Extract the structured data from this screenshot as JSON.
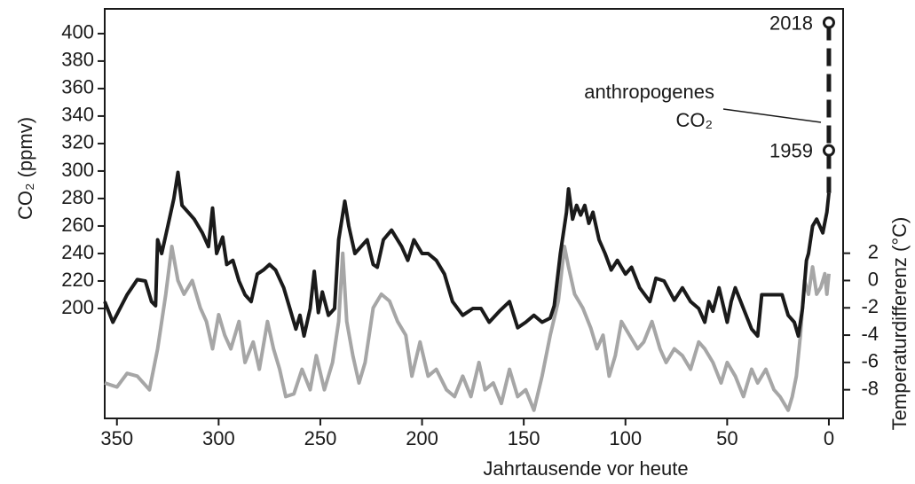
{
  "chart_data": {
    "type": "line",
    "x_label": "Jahrtausende vor heute",
    "y_label": "CO₂ (ppmv)",
    "y2_label": "Temperaturdifferenz (°C)",
    "xlim": [
      356,
      -7
    ],
    "xticks": [
      350,
      300,
      250,
      200,
      150,
      100,
      50,
      0
    ],
    "ylim": [
      120,
      418
    ],
    "yticks": [
      200,
      220,
      240,
      260,
      280,
      300,
      320,
      340,
      360,
      380,
      400
    ],
    "y2lim": [
      -10.1,
      19.9
    ],
    "y2ticks": [
      -8,
      -6,
      -4,
      -2,
      0,
      2
    ],
    "series": [
      {
        "color": "#a6a6a6",
        "axis": "y2",
        "x": [
          356,
          350,
          345,
          340,
          334,
          330,
          326,
          323,
          320,
          317,
          313,
          309,
          306,
          303,
          300,
          297,
          294,
          290,
          287,
          283,
          280,
          276,
          273,
          270,
          267,
          263,
          259,
          255,
          252,
          248,
          244,
          241,
          239,
          237,
          234,
          231,
          228,
          224,
          220,
          216,
          212,
          208,
          205,
          201,
          197,
          193,
          188,
          184,
          180,
          176,
          172,
          169,
          165,
          161,
          157,
          153,
          149,
          145,
          141,
          137,
          133,
          130,
          128,
          125,
          121,
          117,
          114,
          111,
          108,
          105,
          102,
          98,
          94,
          91,
          87,
          83,
          80,
          76,
          72,
          68,
          64,
          61,
          57,
          53,
          50,
          46,
          42,
          38,
          35,
          31,
          27,
          24,
          20,
          18,
          16,
          14,
          12,
          10,
          8,
          6,
          4,
          2,
          1,
          0
        ],
        "values": [
          -7.5,
          -7.8,
          -6.8,
          -7,
          -8,
          -5,
          -1,
          2.5,
          0,
          -1,
          0,
          -2,
          -3,
          -5,
          -2.5,
          -4,
          -5,
          -3,
          -6,
          -4.5,
          -6.5,
          -3,
          -5,
          -6.5,
          -8.5,
          -8.3,
          -6.5,
          -8,
          -5.5,
          -8,
          -6,
          -3,
          2,
          -3,
          -5.5,
          -7.5,
          -6,
          -2,
          -1,
          -1.5,
          -3,
          -4,
          -7,
          -4.5,
          -7,
          -6.5,
          -8,
          -8.5,
          -7,
          -8.5,
          -6,
          -8,
          -7.5,
          -9,
          -6.5,
          -8.5,
          -8,
          -9.5,
          -7,
          -4,
          -1.5,
          2.5,
          1,
          -1,
          -2,
          -3.5,
          -5,
          -4,
          -7,
          -5.5,
          -3,
          -4,
          -5,
          -4.5,
          -3,
          -5,
          -6,
          -5,
          -5.5,
          -6.5,
          -4.5,
          -5,
          -6,
          -7.5,
          -6,
          -7,
          -8.5,
          -6.5,
          -7.5,
          -6.5,
          -8,
          -8.5,
          -9.5,
          -8.5,
          -7,
          -4,
          0,
          -1,
          1,
          -1,
          -0.5,
          0.5,
          -1,
          0.5
        ]
      },
      {
        "color": "#1a1a1a",
        "x": [
          356,
          352,
          345,
          340,
          336,
          333,
          331,
          330,
          328,
          325,
          322,
          320,
          318,
          315,
          312,
          308,
          305,
          303,
          301,
          298,
          296,
          293,
          290,
          287,
          284,
          281,
          278,
          275,
          272,
          268,
          265,
          262,
          260,
          258,
          255,
          253,
          251,
          249,
          246,
          243,
          241,
          238,
          236,
          233,
          230,
          227,
          224,
          222,
          219,
          215,
          210,
          207,
          204,
          200,
          197,
          193,
          189,
          185,
          180,
          175,
          171,
          167,
          162,
          157,
          153,
          149,
          145,
          141,
          137,
          135,
          132,
          129,
          128,
          126,
          124,
          122,
          120,
          118,
          116,
          113,
          110,
          107,
          104,
          100,
          97,
          93,
          88,
          85,
          81,
          76,
          72,
          68,
          64,
          61,
          59,
          57,
          54,
          50,
          48,
          46,
          42,
          38,
          35,
          33,
          30,
          23,
          20,
          17,
          15,
          13,
          11,
          10,
          8,
          6,
          3,
          1,
          0
        ],
        "values": [
          205,
          190,
          210,
          221,
          220,
          205,
          202,
          250,
          240,
          260,
          280,
          299,
          275,
          270,
          265,
          255,
          245,
          273,
          240,
          252,
          232,
          235,
          220,
          210,
          205,
          225,
          228,
          232,
          228,
          215,
          200,
          185,
          195,
          180,
          200,
          227,
          197,
          212,
          195,
          200,
          250,
          278,
          260,
          240,
          245,
          250,
          232,
          230,
          250,
          257,
          245,
          235,
          250,
          240,
          240,
          235,
          225,
          205,
          195,
          200,
          200,
          190,
          198,
          205,
          186,
          190,
          195,
          190,
          193,
          202,
          240,
          270,
          287,
          265,
          275,
          268,
          275,
          262,
          270,
          250,
          240,
          228,
          235,
          225,
          230,
          215,
          205,
          222,
          220,
          206,
          215,
          205,
          200,
          190,
          205,
          198,
          215,
          190,
          205,
          215,
          200,
          185,
          180,
          210,
          210,
          210,
          195,
          190,
          180,
          200,
          235,
          240,
          260,
          265,
          255,
          270,
          284
        ]
      }
    ],
    "annotations": [
      {
        "text": "2018",
        "x": 0,
        "y": 408
      },
      {
        "text": "1959",
        "x": 0,
        "y": 315
      }
    ],
    "callout": [
      "anthropogenes",
      "CO₂"
    ]
  }
}
